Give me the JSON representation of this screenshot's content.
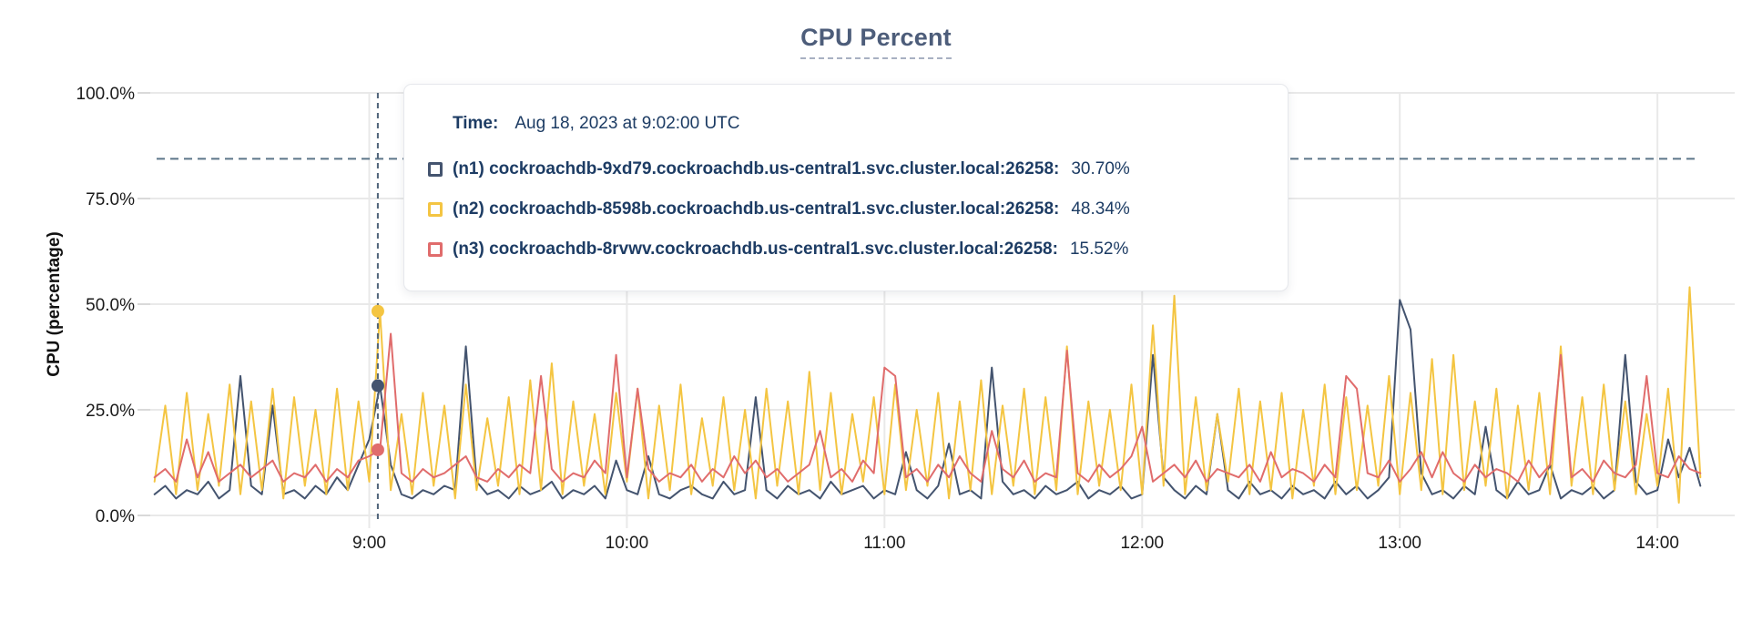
{
  "title": "CPU Percent",
  "y_axis_title": "CPU (percentage)",
  "tooltip": {
    "time_label": "Time:",
    "time_value": "Aug 18, 2023 at 9:02:00 UTC",
    "series": [
      {
        "id": "n1",
        "label": "(n1) cockroachdb-9xd79.cockroachdb.us-central1.svc.cluster.local:26258:",
        "value": "30.70%",
        "color": "#44546f"
      },
      {
        "id": "n2",
        "label": "(n2) cockroachdb-8598b.cockroachdb.us-central1.svc.cluster.local:26258:",
        "value": "48.34%",
        "color": "#f4c542"
      },
      {
        "id": "n3",
        "label": "(n3) cockroachdb-8rvwv.cockroachdb.us-central1.svc.cluster.local:26258:",
        "value": "15.52%",
        "color": "#e06c6c"
      }
    ]
  },
  "chart_data": {
    "type": "line",
    "title": "CPU Percent",
    "xlabel": "",
    "ylabel": "CPU (percentage)",
    "ylim": [
      0,
      100
    ],
    "grid": true,
    "x_unit": "minutes since midnight UTC (Aug 18, 2023)",
    "x_domain_minutes": [
      489,
      858
    ],
    "x_start_minutes": 490,
    "x_step_minutes": 2.5,
    "yticks": [
      {
        "v": 0,
        "label": "0.0%"
      },
      {
        "v": 25,
        "label": "25.0%"
      },
      {
        "v": 50,
        "label": "50.0%"
      },
      {
        "v": 75,
        "label": "75.0%"
      },
      {
        "v": 100,
        "label": "100.0%"
      }
    ],
    "xticks": [
      {
        "t": 540,
        "label": "9:00"
      },
      {
        "t": 600,
        "label": "10:00"
      },
      {
        "t": 660,
        "label": "11:00"
      },
      {
        "t": 720,
        "label": "12:00"
      },
      {
        "t": 780,
        "label": "13:00"
      },
      {
        "t": 840,
        "label": "14:00"
      }
    ],
    "threshold_line": {
      "value": 84.4,
      "style": "dashed",
      "color": "#5c7589"
    },
    "hover": {
      "t": 542,
      "time_label": "Aug 18, 2023 at 9:02:00 UTC",
      "points": [
        {
          "series": "n1",
          "v": 30.7
        },
        {
          "series": "n2",
          "v": 48.34
        },
        {
          "series": "n3",
          "v": 15.52
        }
      ]
    },
    "series": [
      {
        "name": "(n1) cockroachdb-9xd79.cockroachdb.us-central1.svc.cluster.local:26258",
        "short": "n1",
        "color": "#44546f",
        "values": [
          5,
          7,
          4,
          6,
          5,
          8,
          4,
          6,
          33,
          7,
          5,
          26,
          5,
          6,
          4,
          7,
          5,
          9,
          6,
          12,
          18,
          30.7,
          12,
          5,
          4,
          6,
          5,
          7,
          6,
          40,
          8,
          5,
          6,
          4,
          7,
          5,
          6,
          8,
          4,
          6,
          5,
          7,
          4,
          13,
          6,
          5,
          14,
          5,
          4,
          6,
          7,
          5,
          4,
          8,
          5,
          6,
          28,
          6,
          4,
          7,
          5,
          6,
          4,
          8,
          5,
          6,
          7,
          4,
          6,
          5,
          15,
          6,
          4,
          7,
          17,
          5,
          6,
          4,
          35,
          8,
          5,
          6,
          4,
          7,
          5,
          6,
          8,
          4,
          6,
          5,
          7,
          4,
          5,
          38,
          9,
          6,
          4,
          7,
          5,
          24,
          6,
          4,
          8,
          5,
          6,
          4,
          7,
          5,
          6,
          4,
          8,
          5,
          7,
          4,
          6,
          9,
          51,
          44,
          10,
          5,
          6,
          4,
          7,
          5,
          21,
          6,
          4,
          8,
          5,
          6,
          12,
          4,
          6,
          5,
          7,
          4,
          6,
          38,
          8,
          5,
          6,
          18,
          9,
          16,
          7
        ]
      },
      {
        "name": "(n2) cockroachdb-8598b.cockroachdb.us-central1.svc.cluster.local:26258",
        "short": "n2",
        "color": "#f4c542",
        "values": [
          8,
          26,
          5,
          29,
          6,
          24,
          7,
          31,
          5,
          27,
          6,
          30,
          4,
          28,
          7,
          25,
          5,
          30,
          6,
          27,
          8,
          48.3,
          6,
          24,
          5,
          29,
          7,
          26,
          4,
          31,
          6,
          23,
          7,
          28,
          5,
          32,
          6,
          36,
          5,
          27,
          7,
          24,
          5,
          29,
          8,
          30,
          4,
          26,
          6,
          31,
          5,
          23,
          7,
          28,
          6,
          25,
          4,
          30,
          7,
          27,
          5,
          34,
          6,
          29,
          5,
          24,
          8,
          28,
          5,
          31,
          6,
          25,
          7,
          29,
          4,
          27,
          6,
          32,
          5,
          26,
          7,
          30,
          5,
          28,
          6,
          40,
          5,
          27,
          7,
          25,
          6,
          31,
          5,
          45,
          7,
          52,
          5,
          28,
          6,
          24,
          8,
          30,
          5,
          27,
          6,
          29,
          4,
          25,
          7,
          31,
          5,
          28,
          6,
          26,
          7,
          33,
          5,
          29,
          6,
          37,
          5,
          38,
          6,
          27,
          7,
          30,
          4,
          26,
          6,
          29,
          5,
          40,
          7,
          28,
          5,
          31,
          6,
          27,
          5,
          24,
          7,
          30,
          3,
          54,
          9
        ]
      },
      {
        "name": "(n3) cockroachdb-8rvwv.cockroachdb.us-central1.svc.cluster.local:26258",
        "short": "n3",
        "color": "#e06c6c",
        "values": [
          9,
          11,
          8,
          18,
          9,
          15,
          8,
          10,
          12,
          9,
          11,
          13,
          8,
          10,
          9,
          12,
          8,
          11,
          9,
          13,
          14,
          15.5,
          43,
          10,
          8,
          11,
          9,
          10,
          12,
          14,
          9,
          8,
          11,
          9,
          12,
          10,
          33,
          11,
          8,
          10,
          9,
          13,
          10,
          38,
          9,
          30,
          11,
          8,
          10,
          9,
          12,
          8,
          11,
          9,
          14,
          10,
          13,
          9,
          11,
          8,
          10,
          12,
          20,
          9,
          11,
          8,
          13,
          10,
          35,
          33,
          9,
          11,
          8,
          12,
          9,
          14,
          10,
          8,
          20,
          11,
          9,
          13,
          8,
          10,
          9,
          39,
          10,
          8,
          12,
          9,
          11,
          14,
          21,
          8,
          10,
          12,
          9,
          13,
          8,
          11,
          10,
          9,
          12,
          8,
          15,
          9,
          11,
          10,
          8,
          12,
          9,
          33,
          30,
          10,
          9,
          13,
          8,
          11,
          15,
          9,
          15,
          10,
          8,
          12,
          9,
          11,
          10,
          8,
          13,
          9,
          12,
          38,
          9,
          11,
          8,
          13,
          10,
          9,
          12,
          33,
          10,
          9,
          14,
          11,
          10
        ]
      }
    ]
  },
  "colors": {
    "title": "#4d5d7a",
    "tooltip_text": "#1d3c64",
    "gridline": "#e9e9e9",
    "axis_tick_stub": "#d9d9d9",
    "tick_text": "#1a1a1a",
    "threshold": "#5c7589",
    "hover_line": "#50647a"
  }
}
